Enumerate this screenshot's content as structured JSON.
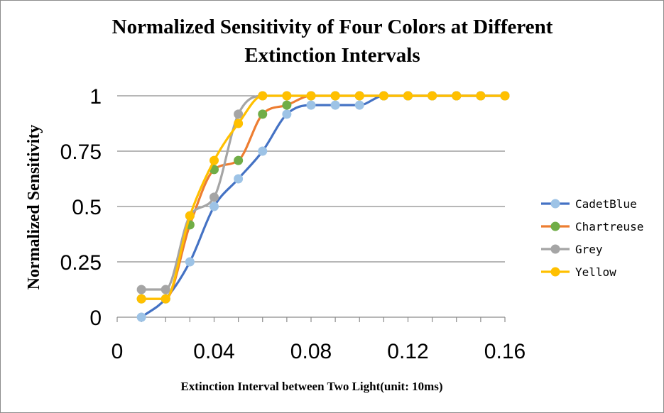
{
  "chart_data": {
    "type": "line",
    "title_lines": [
      "Normalized Sensitivity of Four Colors at Different",
      "Extinction Intervals"
    ],
    "xlabel": "Extinction Interval between Two Light(unit: 10ms)",
    "ylabel": "Normalized Sensitivity",
    "xlim": [
      0,
      0.16
    ],
    "ylim": [
      0,
      1
    ],
    "xticks": [
      0,
      0.04,
      0.08,
      0.12,
      0.16
    ],
    "xtick_labels": [
      "0",
      "0.04",
      "0.08",
      "0.12",
      "0.16"
    ],
    "yticks": [
      0,
      0.25,
      0.5,
      0.75,
      1
    ],
    "ytick_labels": [
      "0",
      "0.25",
      "0.5",
      "0.75",
      "1"
    ],
    "grid": true,
    "legend_position": "right",
    "x": [
      0.01,
      0.02,
      0.03,
      0.04,
      0.05,
      0.06,
      0.07,
      0.08,
      0.09,
      0.1,
      0.11,
      0.12,
      0.13,
      0.14,
      0.15,
      0.16
    ],
    "series": [
      {
        "name": "CadetBlue",
        "line_color": "#4472c4",
        "marker_color": "#9dc3e6",
        "values": [
          0,
          0.083,
          0.25,
          0.5,
          0.625,
          0.75,
          0.917,
          0.958,
          0.958,
          0.958,
          1,
          1,
          1,
          1,
          1,
          1
        ]
      },
      {
        "name": "Chartreuse",
        "line_color": "#ed7d31",
        "marker_color": "#70ad47",
        "values": [
          0.083,
          0.083,
          0.417,
          0.667,
          0.708,
          0.917,
          0.958,
          1,
          1,
          1,
          1,
          1,
          1,
          1,
          1,
          1
        ]
      },
      {
        "name": "Grey",
        "line_color": "#a5a5a5",
        "marker_color": "#a5a5a5",
        "values": [
          0.125,
          0.125,
          0.458,
          0.542,
          0.917,
          1,
          1,
          1,
          1,
          1,
          1,
          1,
          1,
          1,
          1,
          1
        ]
      },
      {
        "name": "Yellow",
        "line_color": "#ffc000",
        "marker_color": "#ffc000",
        "values": [
          0.083,
          0.083,
          0.458,
          0.708,
          0.875,
          1,
          1,
          1,
          1,
          1,
          1,
          1,
          1,
          1,
          1,
          1
        ]
      }
    ]
  }
}
